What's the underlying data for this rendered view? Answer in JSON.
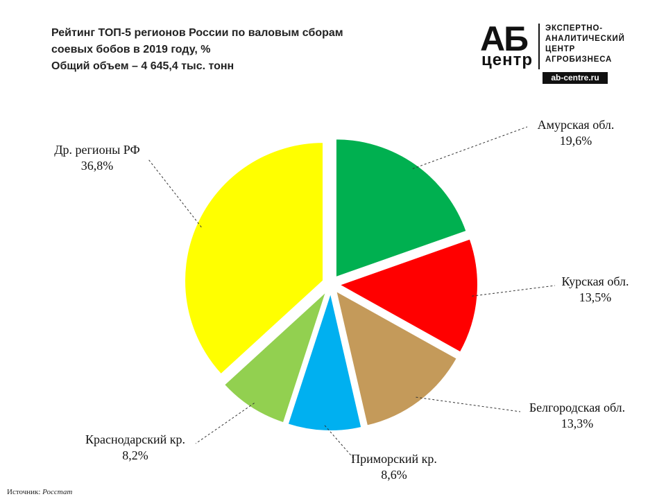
{
  "title": {
    "line1": "Рейтинг ТОП-5 регионов России по валовым сборам",
    "line2": "соевых бобов в 2019 году, %",
    "line3": "Общий объем – 4 645,4 тыс. тонн"
  },
  "logo": {
    "ab": "АБ",
    "center": "центр",
    "text_line1": "ЭКСПЕРТНО-",
    "text_line2": "АНАЛИТИЧЕСКИЙ",
    "text_line3": "ЦЕНТР",
    "text_line4": "АГРОБИЗНЕСА",
    "url": "ab-centre.ru"
  },
  "source": {
    "label": "Источник:",
    "value": "Росстат"
  },
  "chart_data": {
    "type": "pie",
    "title": "Рейтинг ТОП-5 регионов России по валовым сборам соевых бобов в 2019 году, %",
    "subtitle": "Общий объем – 4 645,4 тыс. тонн",
    "unit": "%",
    "slices": [
      {
        "name": "Амурская  обл.",
        "value": 19.6,
        "label": "19,6%",
        "color": "#00B050"
      },
      {
        "name": "Курская  обл.",
        "value": 13.5,
        "label": "13,5%",
        "color": "#FF0000"
      },
      {
        "name": "Белгородская  обл.",
        "value": 13.3,
        "label": "13,3%",
        "color": "#C49A5A"
      },
      {
        "name": "Приморский  кр.",
        "value": 8.6,
        "label": "8,6%",
        "color": "#00B0F0"
      },
      {
        "name": "Краснодарский  кр.",
        "value": 8.2,
        "label": "8,2%",
        "color": "#92D050"
      },
      {
        "name": "Др. регионы РФ",
        "value": 36.8,
        "label": "36,8%",
        "color": "#FFFF00"
      }
    ]
  }
}
